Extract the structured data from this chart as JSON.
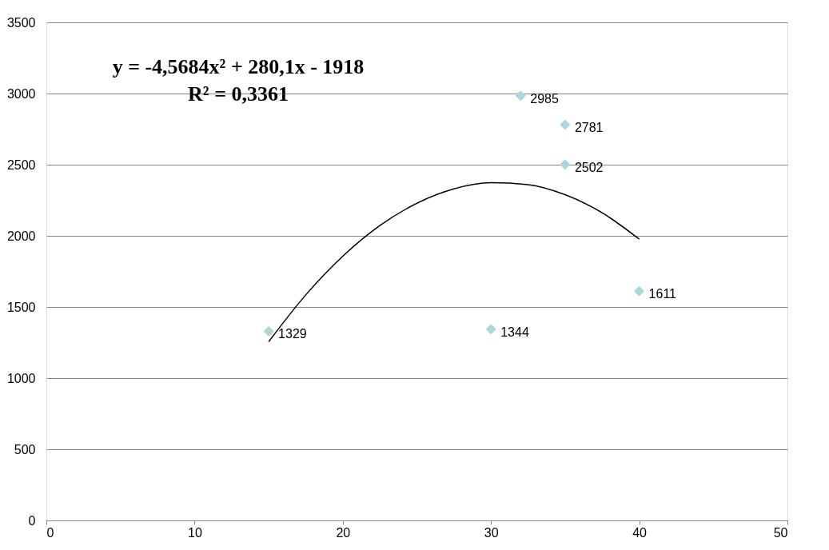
{
  "chart_data": {
    "type": "scatter",
    "marker": "diamond",
    "grid": "y",
    "legend": false,
    "xlim": [
      0,
      50
    ],
    "xticks": [
      0,
      10,
      20,
      30,
      40,
      50
    ],
    "ylim": [
      0,
      3500
    ],
    "yticks": [
      0,
      500,
      1000,
      1500,
      2000,
      2500,
      3000,
      3500
    ],
    "annotations": [
      "y = -4,5684x² + 280,1x - 1918",
      "R² = 0,3361"
    ],
    "series": [
      {
        "color": "#a8d8dc",
        "data_labels": true,
        "x": [
          15,
          30,
          32,
          35,
          35,
          40
        ],
        "values": [
          1329,
          1344,
          2985,
          2781,
          2502,
          1611
        ]
      },
      {
        "type": "line",
        "color": "#000000",
        "marker": "none",
        "x": [
          15,
          17.5,
          20,
          22.5,
          25,
          27.5,
          30,
          32.5,
          35,
          37.5,
          40
        ],
        "values": [
          1256,
          1585,
          1857,
          2072,
          2229,
          2330,
          2373,
          2360,
          2289,
          2162,
          1977
        ]
      }
    ]
  }
}
